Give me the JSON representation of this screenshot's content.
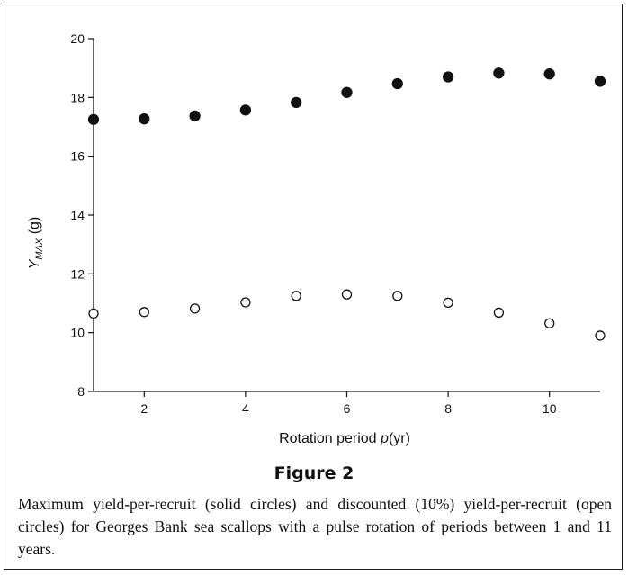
{
  "chart_data": {
    "type": "scatter",
    "xlabel_pre": "Rotation period ",
    "xlabel_var": "p",
    "xlabel_post": "(yr)",
    "ylabel_var": "Y",
    "ylabel_sub": "MAX",
    "ylabel_post": " (g)",
    "xlim": [
      1,
      11
    ],
    "ylim": [
      8,
      20
    ],
    "xticks": [
      2,
      4,
      6,
      8,
      10
    ],
    "yticks": [
      8,
      10,
      12,
      14,
      16,
      18,
      20
    ],
    "grid": false,
    "series": [
      {
        "marker": "filled-circle",
        "x": [
          1,
          2,
          3,
          4,
          5,
          6,
          7,
          8,
          9,
          10,
          11
        ],
        "y": [
          17.25,
          17.27,
          17.37,
          17.57,
          17.83,
          18.17,
          18.47,
          18.7,
          18.83,
          18.8,
          18.55
        ]
      },
      {
        "marker": "open-circle",
        "x": [
          1,
          2,
          3,
          4,
          5,
          6,
          7,
          8,
          9,
          10,
          11
        ],
        "y": [
          10.65,
          10.7,
          10.82,
          11.03,
          11.25,
          11.3,
          11.25,
          11.02,
          10.68,
          10.32,
          9.9
        ]
      }
    ]
  },
  "figure": {
    "title": "Figure 2",
    "caption": "Maximum yield-per-recruit (solid circles) and discounted (10%) yield-per-recruit (open circles) for Georges Bank sea scallops with a pulse rotation of periods between 1 and 11 years."
  }
}
